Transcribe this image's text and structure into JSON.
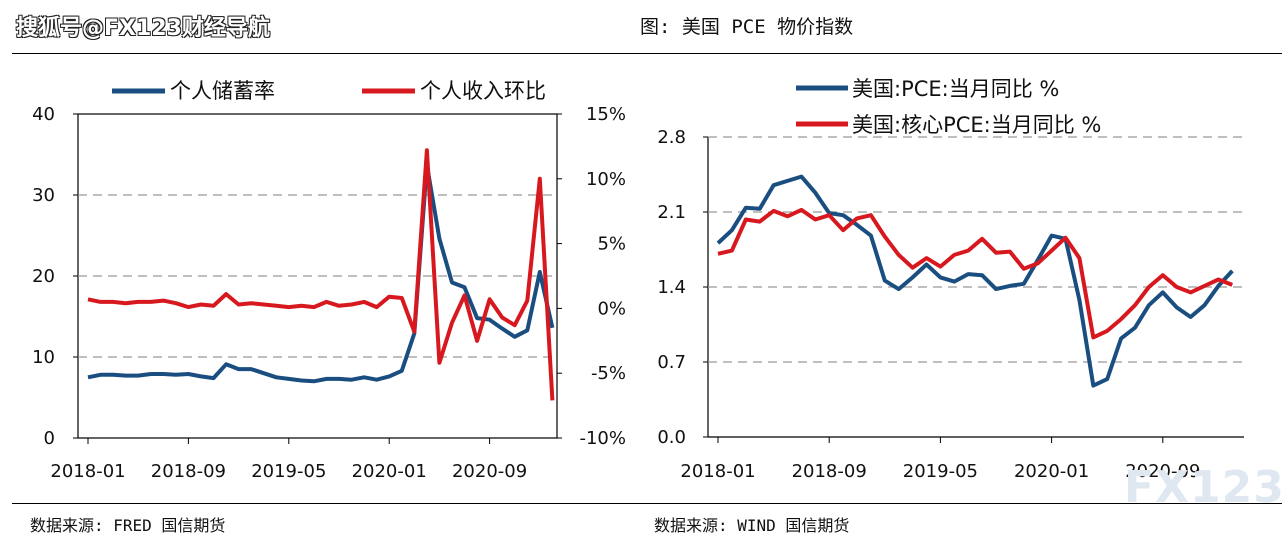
{
  "header": {
    "watermark": "搜狐号@FX123财经导航",
    "figure_title": "图: 美国 PCE 物价指数"
  },
  "footer": {
    "left_source": "数据来源: FRED 国信期货",
    "right_source": "数据来源: WIND 国信期货",
    "logo": "FX123"
  },
  "colors": {
    "blue": "#1a4e80",
    "red": "#d7191f",
    "grid": "#999999"
  },
  "chart_data": [
    {
      "type": "line",
      "x_ticks": [
        "2018-01",
        "2018-09",
        "2019-05",
        "2020-01",
        "2020-09"
      ],
      "y_left_ticks": [
        "40",
        "30",
        "20",
        "10",
        "0"
      ],
      "y_right_ticks": [
        "15%",
        "10%",
        "5%",
        "0%",
        "-5%",
        "-10%"
      ],
      "ylim_left": [
        0,
        40
      ],
      "ylim_right": [
        -10,
        15
      ],
      "grid": "horizontal dashed",
      "legend_position": "top",
      "series": [
        {
          "name": "个人储蓄率",
          "color": "#1a4e80",
          "axis": "left",
          "values": [
            7.5,
            7.8,
            7.8,
            7.7,
            7.7,
            7.9,
            7.9,
            7.8,
            7.9,
            7.6,
            7.4,
            9.1,
            8.5,
            8.5,
            8.0,
            7.5,
            7.3,
            7.1,
            7.0,
            7.3,
            7.3,
            7.2,
            7.5,
            7.2,
            7.6,
            8.3,
            12.9,
            33.7,
            24.6,
            19.2,
            18.6,
            14.8,
            14.6,
            13.5,
            12.5,
            13.3,
            20.5,
            13.6
          ]
        },
        {
          "name": "个人收入环比",
          "color": "#d7191f",
          "axis": "right",
          "values": [
            0.7,
            0.5,
            0.5,
            0.4,
            0.5,
            0.5,
            0.6,
            0.4,
            0.1,
            0.3,
            0.2,
            1.1,
            0.3,
            0.4,
            0.3,
            0.2,
            0.1,
            0.2,
            0.1,
            0.5,
            0.2,
            0.3,
            0.5,
            0.1,
            0.9,
            0.8,
            -1.8,
            12.2,
            -4.2,
            -1.1,
            1.0,
            -2.5,
            0.7,
            -0.7,
            -1.3,
            0.6,
            10.0,
            -7.1
          ]
        }
      ]
    },
    {
      "type": "line",
      "x_ticks": [
        "2018-01",
        "2018-09",
        "2019-05",
        "2020-01",
        "2020-09"
      ],
      "y_ticks": [
        "2.8",
        "2.1",
        "1.4",
        "0.7",
        "0.0"
      ],
      "ylim": [
        0,
        2.8
      ],
      "grid": "horizontal dashed",
      "legend_position": "top",
      "series": [
        {
          "name": "美国:PCE:当月同比 %",
          "color": "#1a4e80",
          "values": [
            1.81,
            1.93,
            2.14,
            2.13,
            2.35,
            2.39,
            2.43,
            2.28,
            2.09,
            2.07,
            1.98,
            1.88,
            1.46,
            1.38,
            1.49,
            1.61,
            1.49,
            1.45,
            1.52,
            1.51,
            1.38,
            1.41,
            1.43,
            1.65,
            1.88,
            1.85,
            1.28,
            0.48,
            0.54,
            0.92,
            1.02,
            1.23,
            1.35,
            1.21,
            1.12,
            1.23,
            1.41,
            1.55
          ]
        },
        {
          "name": "美国:核心PCE:当月同比 %",
          "color": "#d7191f",
          "values": [
            1.71,
            1.74,
            2.03,
            2.01,
            2.11,
            2.06,
            2.12,
            2.03,
            2.07,
            1.93,
            2.04,
            2.07,
            1.87,
            1.7,
            1.58,
            1.67,
            1.59,
            1.7,
            1.74,
            1.85,
            1.72,
            1.73,
            1.57,
            1.62,
            1.74,
            1.86,
            1.67,
            0.93,
            0.99,
            1.1,
            1.23,
            1.4,
            1.51,
            1.4,
            1.35,
            1.41,
            1.47,
            1.42
          ]
        }
      ]
    }
  ]
}
